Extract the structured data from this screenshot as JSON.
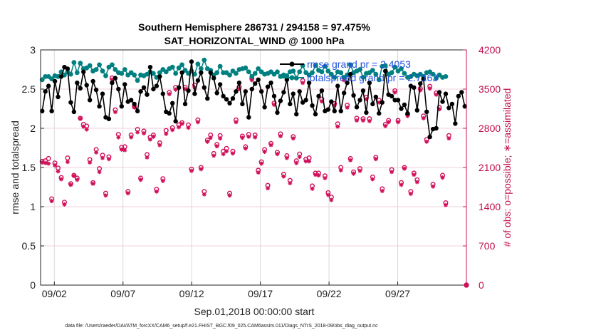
{
  "chart_data": {
    "type": "line",
    "title_line1": "Southern Hemisphere 286731 / 294158 = 97.475%",
    "title_line2": "SAT_HORIZONTAL_WIND @ 1000 hPa",
    "xlabel": "Sep.01,2018 00:00:00 start",
    "ylabel_left": "rmse and totalspread",
    "ylabel_right": "# of obs: o=possible; ∗=assimilated",
    "xlim": [
      0,
      31
    ],
    "ylim_left": [
      0,
      3
    ],
    "ylim_right": [
      0,
      4200
    ],
    "x_ticks": [
      1,
      6,
      11,
      16,
      21,
      26
    ],
    "x_tick_labels": [
      "09/02",
      "09/07",
      "09/12",
      "09/17",
      "09/22",
      "09/27"
    ],
    "y_ticks_left": [
      0,
      0.5,
      1,
      1.5,
      2,
      2.5,
      3
    ],
    "y_tick_labels_left": [
      "0",
      "0.5",
      "1",
      "1.5",
      "2",
      "2.5",
      "3"
    ],
    "y_ticks_right": [
      0,
      700,
      1400,
      2100,
      2800,
      3500,
      4200
    ],
    "y_tick_labels_right": [
      "0",
      "700",
      "1400",
      "2100",
      "2800",
      "3500",
      "4200"
    ],
    "grid": true,
    "legend": [
      {
        "label": "rmse grand pr = 2.4053",
        "color": "#000000"
      },
      {
        "label": "totalspread grand pr = 2.7163",
        "color": "#008080"
      }
    ],
    "colors": {
      "rmse": "#000000",
      "spread": "#008080",
      "obs": "#d0105a",
      "legend_text": "#1f4fe0",
      "grid": "#d9d9d9"
    },
    "series": [
      {
        "name": "rmse",
        "values": [
          2.22,
          2.47,
          2.54,
          2.22,
          2.6,
          2.4,
          2.66,
          2.78,
          2.76,
          2.33,
          2.21,
          2.58,
          2.51,
          2.72,
          2.55,
          2.36,
          2.6,
          2.49,
          2.28,
          2.44,
          2.14,
          2.12,
          2.58,
          2.64,
          2.5,
          2.28,
          2.56,
          2.34,
          2.36,
          2.31,
          2.22,
          2.47,
          2.52,
          2.43,
          2.78,
          2.5,
          2.54,
          2.66,
          2.44,
          2.21,
          2.19,
          2.32,
          2.09,
          2.52,
          2.71,
          2.31,
          2.48,
          2.85,
          2.44,
          2.61,
          2.71,
          2.52,
          2.38,
          2.71,
          2.64,
          2.45,
          2.56,
          2.41,
          2.37,
          2.32,
          2.38,
          2.47,
          2.58,
          2.31,
          2.47,
          2.14,
          2.5,
          2.57,
          2.62,
          2.47,
          2.27,
          2.53,
          2.58,
          2.41,
          2.2,
          2.35,
          2.46,
          2.62,
          2.31,
          2.44,
          2.18,
          2.47,
          2.33,
          2.36,
          2.58,
          2.29,
          2.18,
          2.41,
          2.48,
          2.22,
          2.24,
          2.34,
          2.22,
          2.54,
          2.22,
          2.45,
          2.58,
          2.69,
          2.42,
          2.27,
          2.36,
          2.48,
          2.2,
          2.58,
          2.31,
          2.4,
          2.19,
          2.33,
          2.73,
          2.43,
          2.41,
          2.36,
          2.36,
          2.25,
          2.3,
          2.19,
          2.54,
          2.52,
          2.23,
          2.57,
          2.63,
          2.21,
          1.89,
          1.99,
          2.0,
          2.46,
          2.34,
          2.44,
          2.26,
          2.31,
          2.06,
          2.41,
          2.46,
          2.28
        ]
      },
      {
        "name": "totalspread",
        "values": [
          2.62,
          2.66,
          2.66,
          2.63,
          2.67,
          2.66,
          2.72,
          2.68,
          2.72,
          2.69,
          2.84,
          2.71,
          2.83,
          2.76,
          2.77,
          2.8,
          2.73,
          2.75,
          2.81,
          2.73,
          2.67,
          2.78,
          2.81,
          2.75,
          2.71,
          2.7,
          2.75,
          2.68,
          2.71,
          2.68,
          2.61,
          2.68,
          2.67,
          2.69,
          2.72,
          2.7,
          2.65,
          2.71,
          2.75,
          2.72,
          2.76,
          2.78,
          2.7,
          2.77,
          2.81,
          2.74,
          2.7,
          2.73,
          2.69,
          2.82,
          2.76,
          2.87,
          2.76,
          2.74,
          2.68,
          2.71,
          2.79,
          2.71,
          2.71,
          2.68,
          2.73,
          2.7,
          2.75,
          2.76,
          2.77,
          2.72,
          2.66,
          2.7,
          2.76,
          2.72,
          2.69,
          2.7,
          2.72,
          2.69,
          2.72,
          2.66,
          2.68,
          2.67,
          2.72,
          2.73,
          2.64,
          2.72,
          2.8,
          2.71,
          2.68,
          2.71,
          2.8,
          2.74,
          2.72,
          2.79,
          2.73,
          2.69,
          2.65,
          2.72,
          2.71,
          2.65,
          2.68,
          2.81,
          2.71,
          2.73,
          2.75,
          2.65,
          2.7,
          2.71,
          2.74,
          2.69,
          2.62,
          2.79,
          2.8,
          2.69,
          2.71,
          2.78,
          2.73,
          2.76,
          2.7,
          2.65,
          2.66,
          2.69,
          2.67,
          2.69,
          2.66,
          2.71,
          2.72,
          2.69,
          2.64,
          2.68,
          2.65,
          2.66
        ]
      },
      {
        "name": "obs_possible",
        "values": [
          2210,
          2220,
          2260,
          1540,
          2180,
          2090,
          1920,
          1480,
          2270,
          1810,
          1960,
          1910,
          2980,
          2870,
          2840,
          2240,
          1830,
          2420,
          2080,
          2320,
          1640,
          2290,
          3700,
          3130,
          2690,
          2460,
          2470,
          1670,
          2680,
          3190,
          2780,
          1910,
          2750,
          2330,
          2640,
          2680,
          1710,
          2540,
          1900,
          2760,
          3440,
          2810,
          3530,
          2860,
          2900,
          3530,
          2860,
          2070,
          3570,
          2950,
          2100,
          1670,
          2590,
          2680,
          2350,
          2510,
          2670,
          2390,
          2440,
          1640,
          2390,
          2950,
          3540,
          2660,
          2470,
          2690,
          3690,
          2680,
          2050,
          2200,
          2420,
          1780,
          2530,
          3250,
          2370,
          2700,
          1980,
          2310,
          1870,
          2650,
          2220,
          2340,
          3650,
          2250,
          2270,
          1770,
          2000,
          2000,
          3320,
          1950,
          1650,
          1570,
          3240,
          2880,
          2100,
          3700,
          3210,
          2260,
          2020,
          2980,
          2080,
          2970,
          3350,
          2970,
          1930,
          2280,
          3300,
          1720,
          2870,
          2940,
          2060,
          3470,
          2940,
          1830,
          2100,
          3050,
          1670,
          2000,
          1880,
          3510,
          3020,
          2600,
          3550,
          1800,
          3430,
          3170,
          1960,
          1470,
          2670
        ]
      },
      {
        "name": "obs_assimilated",
        "values": [
          2190,
          2180,
          2170,
          1500,
          2140,
          2030,
          1890,
          1440,
          2200,
          1790,
          1950,
          1880,
          2970,
          2830,
          2780,
          2190,
          1810,
          2370,
          2020,
          2270,
          1600,
          2250,
          3670,
          3090,
          2640,
          2420,
          2410,
          1640,
          2640,
          3170,
          2730,
          1880,
          2710,
          2280,
          2600,
          2650,
          1670,
          2500,
          1860,
          2700,
          3410,
          2770,
          3490,
          2820,
          2880,
          3500,
          2810,
          2040,
          3530,
          2910,
          2070,
          1620,
          2560,
          2630,
          2310,
          2480,
          2620,
          2340,
          2390,
          1600,
          2350,
          2910,
          3500,
          2630,
          2440,
          2650,
          3660,
          2640,
          2010,
          2170,
          2380,
          1730,
          2500,
          3220,
          2340,
          2660,
          1940,
          2270,
          1820,
          2620,
          2180,
          2290,
          3610,
          2210,
          2210,
          1720,
          1970,
          1960,
          3280,
          1910,
          1610,
          1520,
          3210,
          2830,
          2050,
          3660,
          3170,
          2230,
          1990,
          2940,
          2040,
          2940,
          3320,
          2930,
          1890,
          2250,
          3260,
          1680,
          2840,
          2910,
          2020,
          3440,
          2910,
          1790,
          2080,
          3020,
          1630,
          1970,
          1840,
          3480,
          2980,
          2560,
          3510,
          1760,
          3400,
          3140,
          1920,
          1430,
          2620
        ]
      }
    ],
    "final_point": {
      "x": 31,
      "obs_possible": 0,
      "obs_assimilated": 0
    }
  },
  "footer": {
    "datafile": "data file: /Users/raeder/DAI/ATM_forcXX/CAM6_setup/f.e21.FHIST_BGC.f09_025.CAM6assim.011/Diags_NTrS_2018-09/obs_diag_output.nc"
  }
}
